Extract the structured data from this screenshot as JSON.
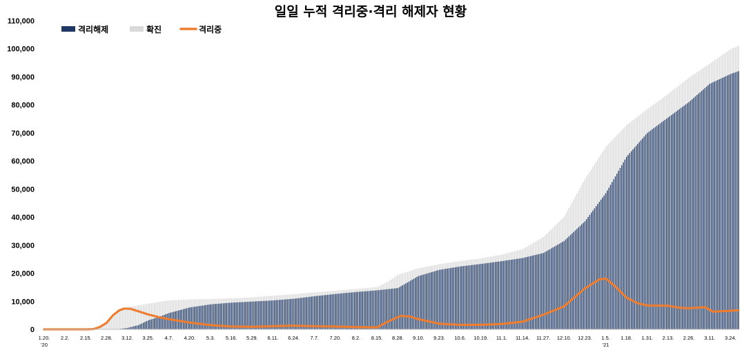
{
  "chart_data": {
    "type": "bar",
    "title": "일일 누적 격리중·격리 해제자 현황",
    "legend_position": "top-left",
    "grid": false,
    "ylim": [
      0,
      110000
    ],
    "yticks": [
      "0",
      "10,000",
      "20,000",
      "30,000",
      "40,000",
      "50,000",
      "60,000",
      "70,000",
      "80,000",
      "90,000",
      "100,000",
      "110,000"
    ],
    "ytick_values": [
      0,
      10000,
      20000,
      30000,
      40000,
      50000,
      60000,
      70000,
      80000,
      90000,
      100000,
      110000
    ],
    "xticks": [
      "1.20.",
      "2.2.",
      "2.15.",
      "2.28.",
      "3.12.",
      "3.25.",
      "4.7.",
      "4.20.",
      "5.3.",
      "5.16.",
      "5.29.",
      "6.11.",
      "6.24.",
      "7.7.",
      "7.20.",
      "8.2.",
      "8.15.",
      "8.28.",
      "9.10.",
      "9.23.",
      "10.6.",
      "10.19.",
      "11.1.",
      "11.14.",
      "11.27.",
      "12.10.",
      "12.23.",
      "1.5.",
      "1.18.",
      "1.31.",
      "2.13.",
      "2.26.",
      "3.11.",
      "3.24."
    ],
    "year_labels": [
      "'20",
      "'21"
    ],
    "x_start_date": "2020-01-20",
    "x_end_date": "2021-03-29",
    "colors": {
      "released": "#1f3864",
      "confirmed": "#d9d9d9",
      "isolated": "#ed7d31"
    },
    "series": [
      {
        "name": "격리해제",
        "kind": "bar",
        "color": "#1f3864",
        "points": [
          [
            "2020-01-20",
            0
          ],
          [
            "2020-03-05",
            0
          ],
          [
            "2020-03-12",
            500
          ],
          [
            "2020-03-19",
            1500
          ],
          [
            "2020-03-25",
            3200
          ],
          [
            "2020-04-01",
            4500
          ],
          [
            "2020-04-07",
            5800
          ],
          [
            "2020-04-20",
            7800
          ],
          [
            "2020-05-03",
            8900
          ],
          [
            "2020-05-16",
            9500
          ],
          [
            "2020-05-29",
            9900
          ],
          [
            "2020-06-11",
            10300
          ],
          [
            "2020-06-24",
            10900
          ],
          [
            "2020-07-07",
            11800
          ],
          [
            "2020-07-20",
            12600
          ],
          [
            "2020-08-02",
            13300
          ],
          [
            "2020-08-15",
            13900
          ],
          [
            "2020-08-28",
            14700
          ],
          [
            "2020-09-10",
            19000
          ],
          [
            "2020-09-23",
            21200
          ],
          [
            "2020-10-06",
            22400
          ],
          [
            "2020-10-19",
            23300
          ],
          [
            "2020-11-01",
            24300
          ],
          [
            "2020-11-14",
            25400
          ],
          [
            "2020-11-27",
            27200
          ],
          [
            "2020-12-10",
            31500
          ],
          [
            "2020-12-23",
            38500
          ],
          [
            "2021-01-05",
            48500
          ],
          [
            "2021-01-18",
            61500
          ],
          [
            "2021-01-31",
            70000
          ],
          [
            "2021-02-13",
            75500
          ],
          [
            "2021-02-26",
            81000
          ],
          [
            "2021-03-11",
            87500
          ],
          [
            "2021-03-24",
            91000
          ],
          [
            "2021-03-29",
            92000
          ]
        ]
      },
      {
        "name": "확진",
        "kind": "bar",
        "color": "#d9d9d9",
        "points": [
          [
            "2020-01-20",
            1
          ],
          [
            "2020-02-15",
            29
          ],
          [
            "2020-02-20",
            104
          ],
          [
            "2020-02-25",
            977
          ],
          [
            "2020-02-28",
            2337
          ],
          [
            "2020-03-03",
            5186
          ],
          [
            "2020-03-07",
            7134
          ],
          [
            "2020-03-12",
            7869
          ],
          [
            "2020-03-19",
            8565
          ],
          [
            "2020-03-25",
            9137
          ],
          [
            "2020-04-07",
            10331
          ],
          [
            "2020-04-20",
            10674
          ],
          [
            "2020-05-03",
            10793
          ],
          [
            "2020-05-16",
            11050
          ],
          [
            "2020-05-29",
            11402
          ],
          [
            "2020-06-11",
            12003
          ],
          [
            "2020-06-24",
            12535
          ],
          [
            "2020-07-07",
            13181
          ],
          [
            "2020-07-20",
            13771
          ],
          [
            "2020-08-02",
            14389
          ],
          [
            "2020-08-15",
            15039
          ],
          [
            "2020-08-22",
            17002
          ],
          [
            "2020-08-28",
            19400
          ],
          [
            "2020-09-10",
            21743
          ],
          [
            "2020-09-23",
            23216
          ],
          [
            "2020-10-06",
            24353
          ],
          [
            "2020-10-19",
            25275
          ],
          [
            "2020-11-01",
            26635
          ],
          [
            "2020-11-14",
            28546
          ],
          [
            "2020-11-27",
            32887
          ],
          [
            "2020-12-10",
            40098
          ],
          [
            "2020-12-23",
            53533
          ],
          [
            "2021-01-05",
            64979
          ],
          [
            "2021-01-18",
            72729
          ],
          [
            "2021-01-31",
            78508
          ],
          [
            "2021-02-13",
            83869
          ],
          [
            "2021-02-26",
            89676
          ],
          [
            "2021-03-11",
            94686
          ],
          [
            "2021-03-24",
            99846
          ],
          [
            "2021-03-29",
            101000
          ]
        ]
      },
      {
        "name": "격리중",
        "kind": "line",
        "color": "#ed7d31",
        "points": [
          [
            "2020-01-20",
            0
          ],
          [
            "2020-02-15",
            0
          ],
          [
            "2020-02-20",
            100
          ],
          [
            "2020-02-24",
            900
          ],
          [
            "2020-02-28",
            2300
          ],
          [
            "2020-03-03",
            5000
          ],
          [
            "2020-03-07",
            6800
          ],
          [
            "2020-03-10",
            7400
          ],
          [
            "2020-03-14",
            7300
          ],
          [
            "2020-03-18",
            6600
          ],
          [
            "2020-03-25",
            5300
          ],
          [
            "2020-04-01",
            4300
          ],
          [
            "2020-04-07",
            3600
          ],
          [
            "2020-04-20",
            2400
          ],
          [
            "2020-05-03",
            1500
          ],
          [
            "2020-05-16",
            1000
          ],
          [
            "2020-05-29",
            900
          ],
          [
            "2020-06-11",
            1100
          ],
          [
            "2020-06-24",
            1300
          ],
          [
            "2020-07-07",
            1100
          ],
          [
            "2020-07-20",
            1000
          ],
          [
            "2020-08-02",
            800
          ],
          [
            "2020-08-15",
            700
          ],
          [
            "2020-08-22",
            2800
          ],
          [
            "2020-08-30",
            4800
          ],
          [
            "2020-09-05",
            4500
          ],
          [
            "2020-09-10",
            3600
          ],
          [
            "2020-09-23",
            2000
          ],
          [
            "2020-10-06",
            1600
          ],
          [
            "2020-10-19",
            1600
          ],
          [
            "2020-11-01",
            1900
          ],
          [
            "2020-11-14",
            2700
          ],
          [
            "2020-11-27",
            5200
          ],
          [
            "2020-12-10",
            8200
          ],
          [
            "2020-12-23",
            14600
          ],
          [
            "2021-01-01",
            17800
          ],
          [
            "2021-01-05",
            18100
          ],
          [
            "2021-01-10",
            15800
          ],
          [
            "2021-01-18",
            11300
          ],
          [
            "2021-01-25",
            9300
          ],
          [
            "2021-01-31",
            8500
          ],
          [
            "2021-02-13",
            8400
          ],
          [
            "2021-02-20",
            7700
          ],
          [
            "2021-02-26",
            7500
          ],
          [
            "2021-03-08",
            7900
          ],
          [
            "2021-03-13",
            6300
          ],
          [
            "2021-03-20",
            6500
          ],
          [
            "2021-03-29",
            6800
          ]
        ]
      }
    ]
  }
}
